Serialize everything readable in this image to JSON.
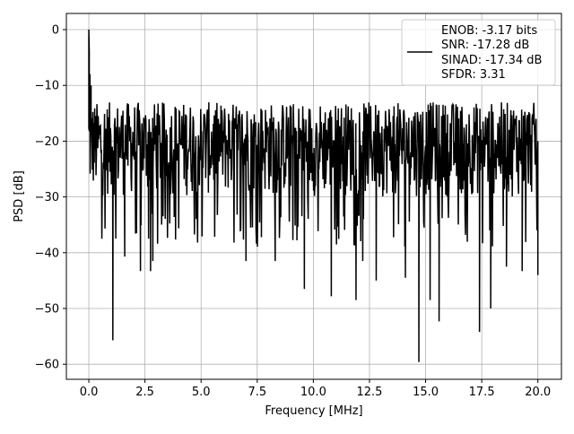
{
  "chart_data": {
    "type": "line",
    "title": "",
    "xlabel": "Frequency [MHz]",
    "ylabel": "PSD [dB]",
    "xlim": [
      -1.0,
      21.05
    ],
    "ylim": [
      -62.7,
      2.9
    ],
    "xticks": [
      0,
      2.5,
      5,
      7.5,
      10,
      12.5,
      15,
      17.5,
      20
    ],
    "xtick_labels": [
      "0.0",
      "2.5",
      "5.0",
      "7.5",
      "10.0",
      "12.5",
      "15.0",
      "17.5",
      "20.0"
    ],
    "yticks": [
      0,
      -10,
      -20,
      -30,
      -40,
      -50,
      -60
    ],
    "ytick_labels": [
      "0",
      "−10",
      "−20",
      "−30",
      "−40",
      "−50",
      "−60"
    ],
    "grid": true,
    "legend_position": "top-right",
    "legend": [
      "ENOB: -3.17 bits",
      "SNR: -17.28 dB",
      "SINAD: -17.34 dB",
      "SFDR: 3.31"
    ],
    "series": [
      {
        "name": "PSD",
        "color": "#000000",
        "x_range": [
          0,
          20
        ],
        "num_points": 1000,
        "noise_floor_dB": [
          -30,
          -13
        ],
        "typical_dip_dB": -36,
        "notable_points": [
          [
            0,
            0
          ],
          [
            0.02,
            -4
          ],
          [
            0.05,
            -8
          ],
          [
            0.1,
            -10
          ],
          [
            1.07,
            -55.7
          ],
          [
            1.6,
            -40.7
          ],
          [
            2.3,
            -43.3
          ],
          [
            2.75,
            -43.3
          ],
          [
            2.85,
            -41.5
          ],
          [
            7.0,
            -41.5
          ],
          [
            8.3,
            -41.5
          ],
          [
            9.6,
            -46.5
          ],
          [
            10.8,
            -47.8
          ],
          [
            11.9,
            -48.5
          ],
          [
            12.2,
            -41.5
          ],
          [
            12.8,
            -45
          ],
          [
            14.1,
            -44.5
          ],
          [
            14.7,
            -59.6
          ],
          [
            15.2,
            -48.5
          ],
          [
            15.6,
            -52.3
          ],
          [
            17.4,
            -54.2
          ],
          [
            17.9,
            -50
          ],
          [
            18.6,
            -42.5
          ],
          [
            19.3,
            -43.3
          ],
          [
            20,
            -44
          ]
        ]
      }
    ]
  }
}
